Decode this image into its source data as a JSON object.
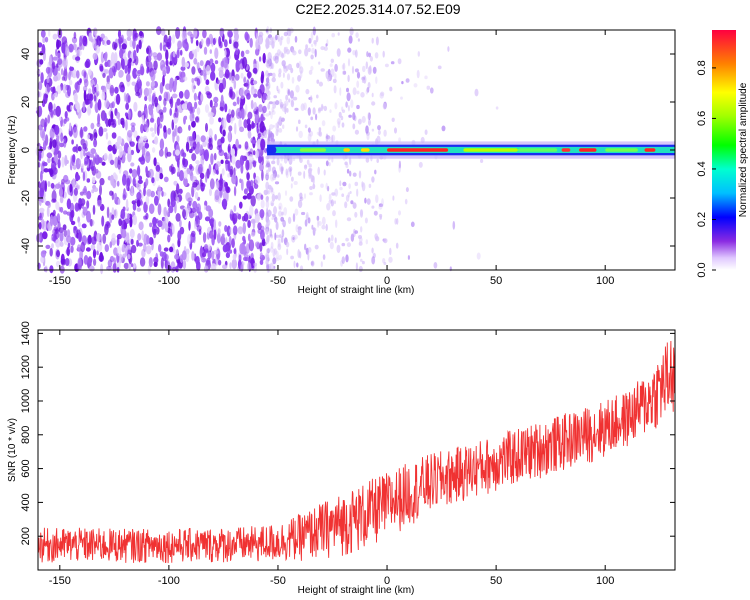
{
  "title": "C2E2.2025.314.07.52.E09",
  "chart_data": [
    {
      "type": "heatmap",
      "xlabel": "Height of straight line (km)",
      "ylabel": "Frequency (Hz)",
      "xlim": [
        -160,
        132
      ],
      "ylim": [
        -50,
        50
      ],
      "xticks": [
        "-150",
        "-100",
        "-50",
        "0",
        "50",
        "100"
      ],
      "yticks": [
        "-40",
        "-20",
        "0",
        "20",
        "40"
      ],
      "colorbar": {
        "label": "Normalized spectral amplitude",
        "range": [
          0,
          0.95
        ],
        "ticks": [
          "0.0",
          "0.2",
          "0.4",
          "0.6",
          "0.8"
        ]
      },
      "features": {
        "noise_region_x": [
          -160,
          -55
        ],
        "sparse_noise_x": [
          -55,
          0
        ],
        "signal_start_x": -55,
        "signal_frequency_hz": 0,
        "signal_bandwidth_hz": 4
      }
    },
    {
      "type": "line",
      "xlabel": "Height of straight line (km)",
      "ylabel": "SNR (10 * v/v)",
      "xlim": [
        -160,
        132
      ],
      "ylim": [
        0,
        1420
      ],
      "xticks": [
        "-150",
        "-100",
        "-50",
        "0",
        "50",
        "100"
      ],
      "yticks": [
        "200",
        "400",
        "600",
        "800",
        "1000",
        "1200",
        "1400"
      ],
      "color": "#f03232",
      "series": [
        {
          "x": [
            -160,
            -140,
            -120,
            -100,
            -80,
            -60,
            -50,
            -40,
            -30,
            -20,
            -10,
            0,
            10,
            20,
            30,
            40,
            50,
            60,
            70,
            80,
            90,
            100,
            110,
            120,
            130
          ],
          "lower": [
            40,
            40,
            40,
            40,
            40,
            40,
            45,
            50,
            60,
            80,
            110,
            180,
            260,
            330,
            380,
            420,
            460,
            500,
            540,
            580,
            620,
            660,
            720,
            800,
            880
          ],
          "upper": [
            250,
            250,
            245,
            245,
            250,
            260,
            280,
            330,
            400,
            460,
            520,
            580,
            640,
            690,
            720,
            760,
            800,
            840,
            880,
            920,
            960,
            1010,
            1060,
            1180,
            1400
          ]
        }
      ]
    }
  ]
}
